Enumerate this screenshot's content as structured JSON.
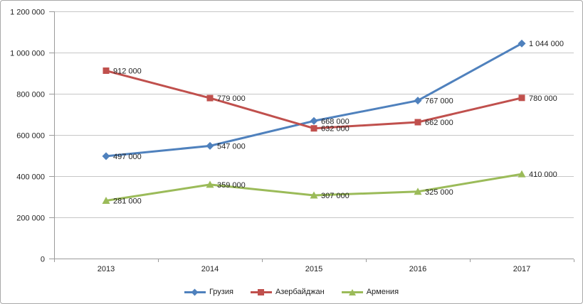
{
  "chart_data": {
    "type": "line",
    "categories": [
      "2013",
      "2014",
      "2015",
      "2016",
      "2017"
    ],
    "series": [
      {
        "name": "Грузия",
        "color": "#4F81BD",
        "marker": "diamond",
        "values": [
          497000,
          547000,
          668000,
          767000,
          1044000
        ],
        "labels": [
          "497 000",
          "547 000",
          "668 000",
          "767 000",
          "1 044 000"
        ]
      },
      {
        "name": "Азербайджан",
        "color": "#C0504D",
        "marker": "square",
        "values": [
          912000,
          779000,
          632000,
          662000,
          780000
        ],
        "labels": [
          "912 000",
          "779 000",
          "632 000",
          "662 000",
          "780 000"
        ]
      },
      {
        "name": "Армения",
        "color": "#9BBB59",
        "marker": "triangle",
        "values": [
          281000,
          359000,
          307000,
          325000,
          410000
        ],
        "labels": [
          "281 000",
          "359 000",
          "307 000",
          "325 000",
          "410 000"
        ]
      }
    ],
    "ylim": [
      0,
      1200000
    ],
    "yticks": {
      "values": [
        0,
        200000,
        400000,
        600000,
        800000,
        1000000,
        1200000
      ],
      "labels": [
        "0",
        "200 000",
        "400 000",
        "600 000",
        "800 000",
        "1 000 000",
        "1 200 000"
      ]
    },
    "grid": true,
    "legend_position": "bottom"
  },
  "colors": {
    "grid": "#c6c6c6",
    "axis": "#9b9b9b",
    "text": "#1f1f1f",
    "border": "#a8a8a8"
  }
}
